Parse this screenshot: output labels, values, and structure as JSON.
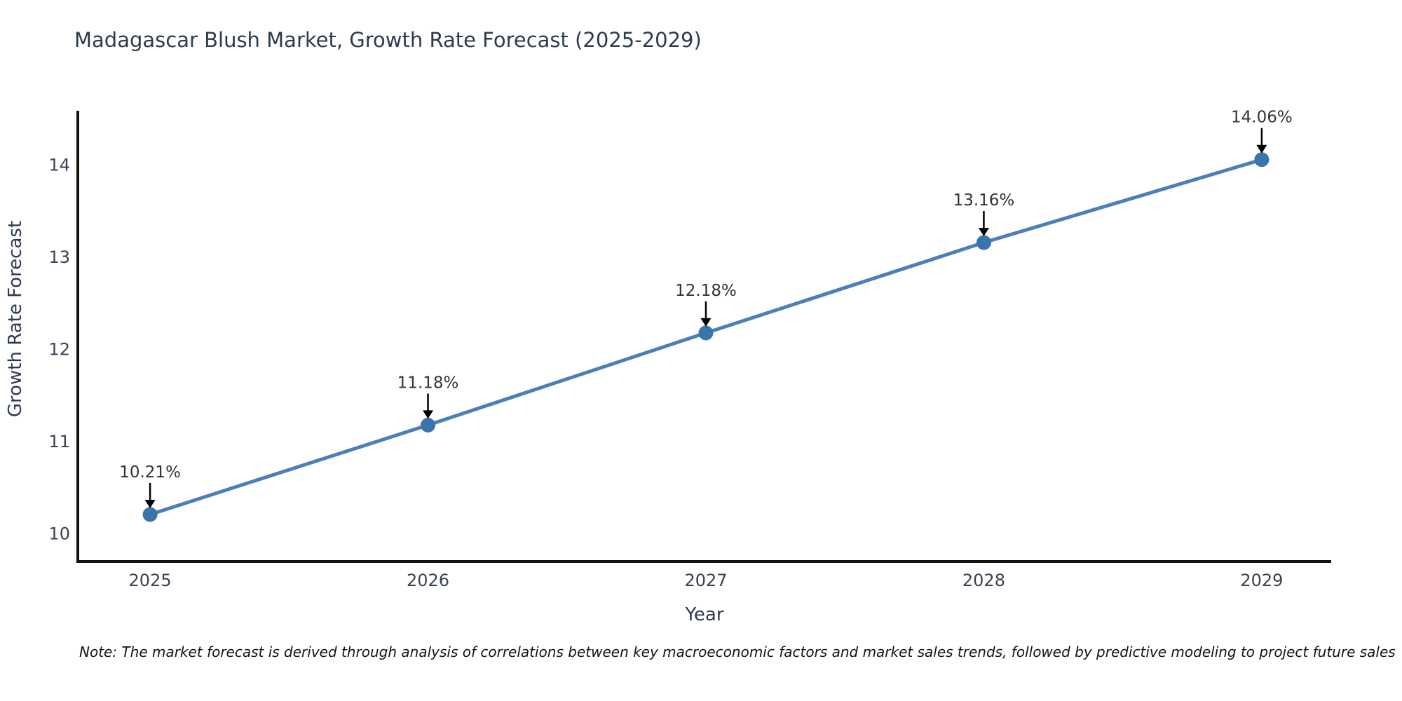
{
  "title": "Madagascar Blush Market, Growth Rate Forecast (2025-2029)",
  "note": "Note: The market forecast is derived through analysis of correlations between key macroeconomic factors and market sales trends, followed by predictive modeling to project future sales",
  "chart_data": {
    "type": "line",
    "title": "Madagascar Blush Market, Growth Rate Forecast (2025-2029)",
    "xlabel": "Year",
    "ylabel": "Growth Rate Forecast",
    "x": [
      2025,
      2026,
      2027,
      2028,
      2029
    ],
    "series": [
      {
        "name": "Growth Rate Forecast",
        "values": [
          10.21,
          11.18,
          12.18,
          13.16,
          14.06
        ]
      }
    ],
    "point_labels": [
      "10.21%",
      "11.18%",
      "12.18%",
      "13.16%",
      "14.06%"
    ],
    "yticks": [
      10,
      11,
      12,
      13,
      14
    ],
    "xticks": [
      2025,
      2026,
      2027,
      2028,
      2029
    ],
    "xlim": [
      2024.74,
      2029.25
    ],
    "ylim": [
      9.7,
      14.59
    ],
    "grid": false,
    "legend": "none",
    "colors": {
      "line": "#4a80b8",
      "marker": "#3b73ab",
      "annotation_text": "#333333",
      "annotation_arrow": "#000000",
      "tick_text": "#3a4154",
      "axis_text": "#2e3a50",
      "spine": "#111111",
      "background": "#ffffff"
    }
  }
}
